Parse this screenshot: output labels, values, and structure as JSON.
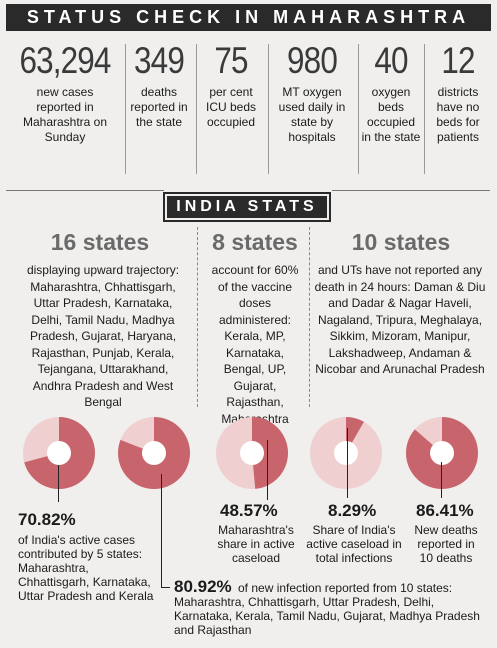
{
  "banner": "STATUS CHECK IN MAHARASHTRA",
  "stats": [
    {
      "value": "63,294",
      "label": "new cases reported in Maharashtra on Sunday"
    },
    {
      "value": "349",
      "label": "deaths reported in the state"
    },
    {
      "value": "75",
      "label": "per cent ICU beds occupied"
    },
    {
      "value": "980",
      "label": "MT oxygen used daily in state by hospitals"
    },
    {
      "value": "40",
      "label": "oxygen beds occupied in the state"
    },
    {
      "value": "12",
      "label": "districts have no beds for patients"
    }
  ],
  "india_banner": "INDIA STATS",
  "columns": [
    {
      "heading": "16 states",
      "text": "displaying upward trajectory: Maharashtra, Chhattisgarh, Uttar Pradesh, Karnataka, Delhi, Tamil Nadu, Madhya Pradesh, Gujarat, Haryana, Rajasthan, Punjab, Kerala, Tejangana, Uttarakhand, Andhra Pradesh and West Bengal"
    },
    {
      "heading": "8 states",
      "text": "account for 60% of the vaccine doses administered: Kerala, MP, Karnataka, Bengal, UP, Gujarat, Rajasthan, Maharashtra"
    },
    {
      "heading": "10 states",
      "text": "and UTs have not reported any death in 24 hours: Daman & Diu and Dadar & Nagar Haveli, Nagaland, Tripura, Meghalaya, Sikkim, Mizoram, Manipur, Lakshadweep, Andaman & Nicobar and Arunachal Pradesh"
    }
  ],
  "donuts": [
    {
      "percent": 70.82,
      "label": "70.82%",
      "caption": "of India's active cases contributed by 5 states: Maharashtra, Chhattisgarh, Karnataka, Uttar Pradesh and Kerala"
    },
    {
      "percent": 80.92,
      "label": "80.92%",
      "caption": "of new infection reported from 10 states: Maharashtra, Chhattisgarh, Uttar Pradesh, Delhi, Karnataka, Kerala, Tamil Nadu, Gujarat, Madhya Pradesh and Rajasthan"
    },
    {
      "percent": 48.57,
      "label": "48.57%",
      "caption": "Maharashtra's share in active caseload"
    },
    {
      "percent": 8.29,
      "label": "8.29%",
      "caption": "Share of India's active caseload in total infections"
    },
    {
      "percent": 86.41,
      "label": "86.41%",
      "caption": "New deaths reported in 10 deaths"
    }
  ],
  "colors": {
    "dark": "#c8646c",
    "light": "#f0cfd1",
    "banner": "#2a2a2a"
  }
}
